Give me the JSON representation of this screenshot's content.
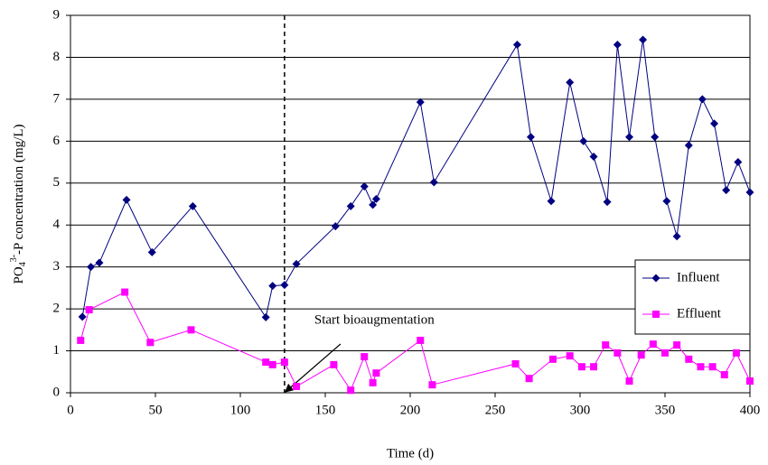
{
  "chart_data": {
    "type": "line",
    "x_label": "Time (d)",
    "y_label": {
      "base": "PO",
      "sub": "4",
      "sup": "3-",
      "rest": "-P concentration (mg/L)"
    },
    "xlim": [
      0,
      400
    ],
    "xticks": [
      0,
      50,
      100,
      150,
      200,
      250,
      300,
      350,
      400
    ],
    "ylim": [
      0,
      9
    ],
    "yticks": [
      0,
      1,
      2,
      3,
      4,
      5,
      6,
      7,
      8,
      9
    ],
    "grid": true,
    "legend": "lower right",
    "annotation": {
      "text": "Start bioaugmentation",
      "x": 126
    },
    "series": [
      {
        "name": "Influent",
        "color": "#000080",
        "marker": "diamond",
        "x": [
          7,
          12,
          17,
          33,
          48,
          72,
          115,
          119,
          126,
          133,
          156,
          165,
          173,
          178,
          180,
          206,
          214,
          263,
          271,
          283,
          294,
          302,
          308,
          316,
          322,
          329,
          337,
          344,
          351,
          357,
          364,
          372,
          379,
          386,
          393,
          400
        ],
        "values": [
          1.81,
          3.0,
          3.1,
          4.6,
          3.35,
          4.45,
          1.8,
          2.55,
          2.57,
          3.07,
          3.97,
          4.45,
          4.92,
          4.48,
          4.62,
          6.93,
          5.02,
          8.3,
          6.1,
          4.57,
          7.4,
          6.0,
          5.63,
          4.55,
          8.3,
          6.1,
          8.42,
          6.1,
          4.57,
          3.73,
          5.9,
          7.0,
          6.42,
          4.83,
          5.5,
          4.78
        ]
      },
      {
        "name": "Effluent",
        "color": "#ff00ff",
        "marker": "square",
        "x": [
          6,
          11,
          32,
          47,
          71,
          115,
          119,
          126,
          133,
          155,
          165,
          173,
          178,
          180,
          206,
          213,
          262,
          270,
          284,
          294,
          301,
          308,
          315,
          322,
          329,
          336,
          343,
          350,
          357,
          364,
          371,
          378,
          385,
          392,
          400
        ],
        "values": [
          1.25,
          1.98,
          2.4,
          1.2,
          1.5,
          0.73,
          0.67,
          0.73,
          0.15,
          0.67,
          0.06,
          0.86,
          0.24,
          0.47,
          1.25,
          0.19,
          0.69,
          0.34,
          0.8,
          0.88,
          0.62,
          0.62,
          1.14,
          0.95,
          0.28,
          0.9,
          1.16,
          0.95,
          1.14,
          0.8,
          0.62,
          0.62,
          0.43,
          0.95,
          0.28
        ]
      }
    ]
  }
}
